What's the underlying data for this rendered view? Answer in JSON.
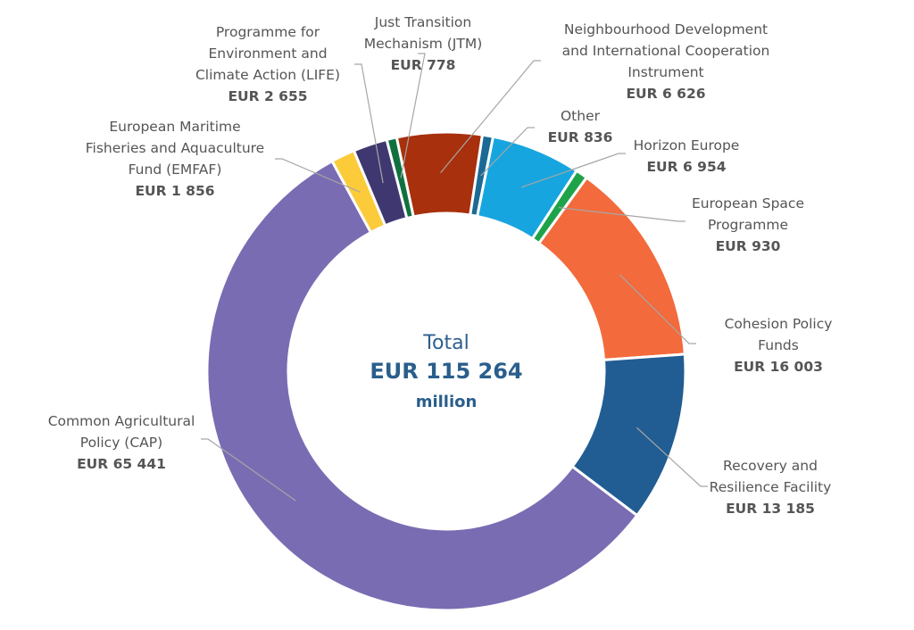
{
  "chart_data": {
    "type": "pie",
    "donut": true,
    "center": {
      "title": "Total",
      "value": "EUR 115 264",
      "unit": "million"
    },
    "slices": [
      {
        "name": [
          "Neighbourhood Development",
          "and International Cooperation",
          "Instrument"
        ],
        "label": "EUR 6 626",
        "value": 6626,
        "color": "#a8300d"
      },
      {
        "name": [
          "Other"
        ],
        "label": "EUR 836",
        "value": 836,
        "color": "#1b6a95"
      },
      {
        "name": [
          "Horizon Europe"
        ],
        "label": "EUR 6 954",
        "value": 6954,
        "color": "#17a5df"
      },
      {
        "name": [
          "European Space",
          "Programme"
        ],
        "label": "EUR 930",
        "value": 930,
        "color": "#1ea34a"
      },
      {
        "name": [
          "Cohesion Policy",
          "Funds"
        ],
        "label": "EUR 16 003",
        "value": 16003,
        "color": "#f36a3c"
      },
      {
        "name": [
          "Recovery and",
          "Resilience Facility"
        ],
        "label": "EUR 13 185",
        "value": 13185,
        "color": "#215d93"
      },
      {
        "name": [
          "Common Agricultural",
          "Policy (CAP)"
        ],
        "label": "EUR 65 441",
        "value": 65441,
        "color": "#7a6cb2"
      },
      {
        "name": [
          "European Maritime",
          "Fisheries and Aquaculture",
          "Fund (EMFAF)"
        ],
        "label": "EUR 1 856",
        "value": 1856,
        "color": "#fccb3a"
      },
      {
        "name": [
          "Programme for",
          "Environment and",
          "Climate Action (LIFE)"
        ],
        "label": "EUR 2 655",
        "value": 2655,
        "color": "#3f3870"
      },
      {
        "name": [
          "Just Transition",
          "Mechanism (JTM)"
        ],
        "label": "EUR 778",
        "value": 778,
        "color": "#10713f"
      }
    ]
  }
}
